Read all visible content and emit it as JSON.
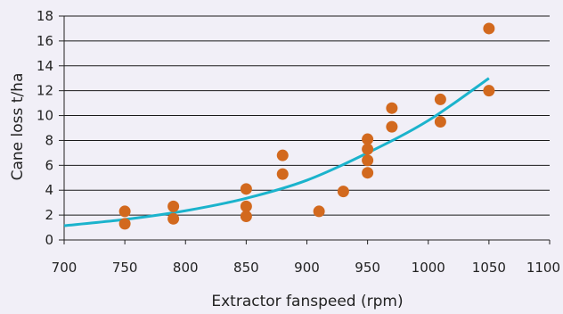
{
  "chart_data": {
    "type": "scatter",
    "title": "",
    "xlabel": "Extractor fanspeed (rpm)",
    "ylabel": "Cane loss t/ha",
    "xlim": [
      700,
      1100
    ],
    "ylim": [
      0,
      18
    ],
    "x_ticks": [
      "700",
      "750",
      "800",
      "850",
      "900",
      "950",
      "1000",
      "1050",
      "1100"
    ],
    "y_ticks": [
      "0",
      "2",
      "4",
      "6",
      "8",
      "10",
      "12",
      "14",
      "16",
      "18"
    ],
    "grid": "horizontal",
    "legend": "none",
    "colors": {
      "points": "#d2691e",
      "trend": "#1bb3cc",
      "grid": "#1a1a1a"
    },
    "series": [
      {
        "kind": "scatter",
        "points": [
          [
            750,
            2.3
          ],
          [
            750,
            1.3
          ],
          [
            790,
            2.7
          ],
          [
            790,
            1.7
          ],
          [
            850,
            4.1
          ],
          [
            850,
            2.7
          ],
          [
            850,
            1.9
          ],
          [
            880,
            6.8
          ],
          [
            880,
            5.3
          ],
          [
            910,
            2.3
          ],
          [
            930,
            3.9
          ],
          [
            950,
            8.1
          ],
          [
            950,
            7.3
          ],
          [
            950,
            6.4
          ],
          [
            950,
            5.4
          ],
          [
            970,
            10.6
          ],
          [
            970,
            9.1
          ],
          [
            1010,
            11.3
          ],
          [
            1010,
            9.5
          ],
          [
            1050,
            17.0
          ],
          [
            1050,
            12.0
          ]
        ]
      },
      {
        "kind": "trendline",
        "points": [
          [
            700,
            1.15
          ],
          [
            750,
            1.65
          ],
          [
            800,
            2.35
          ],
          [
            850,
            3.35
          ],
          [
            900,
            4.8
          ],
          [
            950,
            7.0
          ],
          [
            1000,
            9.6
          ],
          [
            1050,
            13.0
          ]
        ]
      }
    ]
  }
}
